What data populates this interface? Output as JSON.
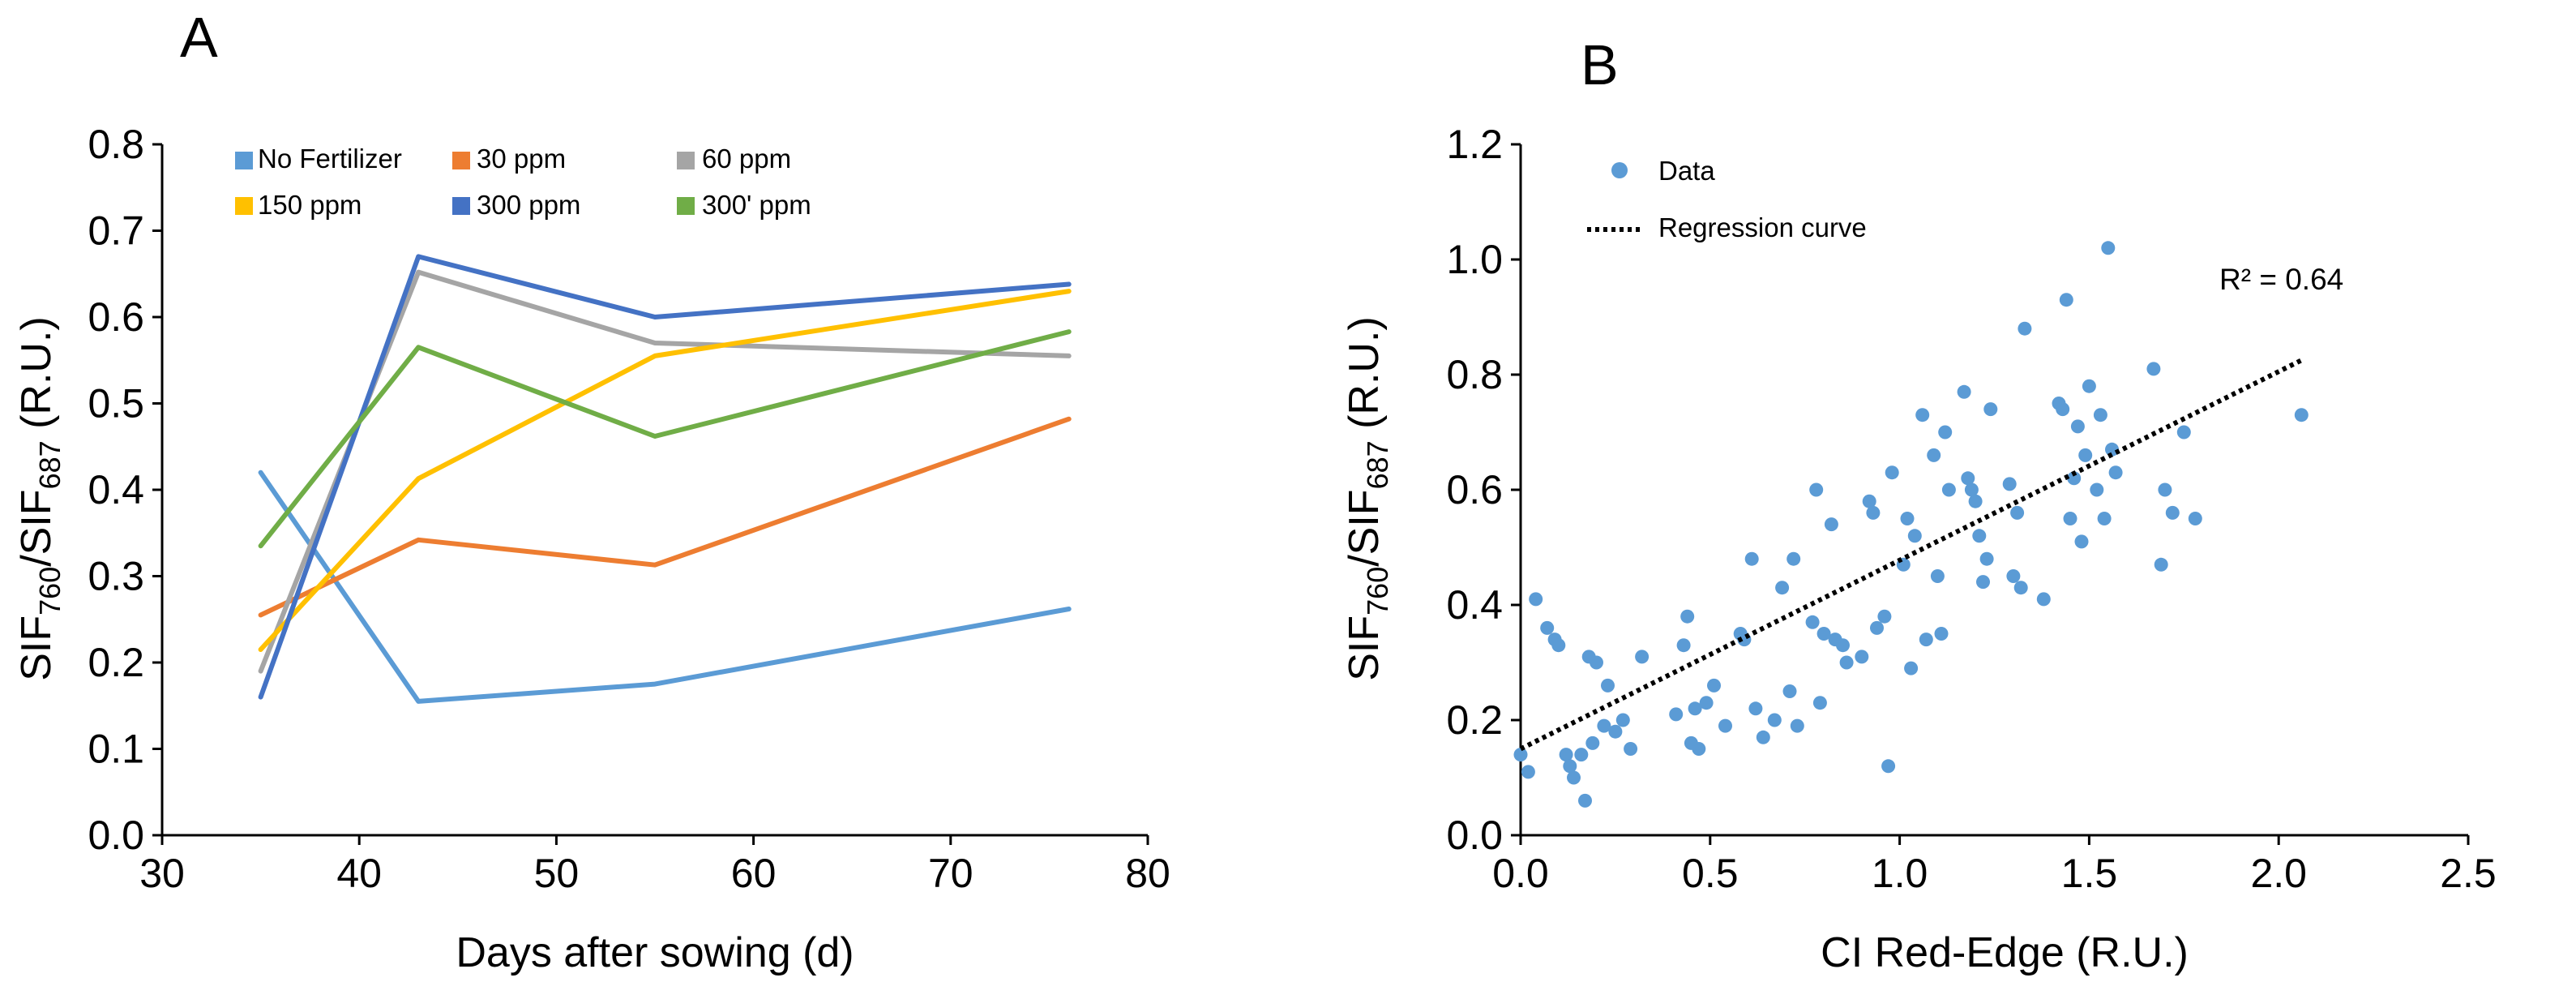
{
  "figure": {
    "panel_a_label": "A",
    "panel_b_label": "B"
  },
  "chart_data": [
    {
      "panel": "A",
      "type": "line",
      "title": "",
      "xlabel": "Days after sowing (d)",
      "ylabel": {
        "base": "SIF",
        "sub1": "760",
        "mid": "/SIF",
        "sub2": "687",
        "suffix": " (R.U.)"
      },
      "xlim": [
        30,
        80
      ],
      "ylim": [
        0.0,
        0.8
      ],
      "xticks": [
        "30",
        "40",
        "50",
        "60",
        "70",
        "80"
      ],
      "yticks": [
        "0.0",
        "0.1",
        "0.2",
        "0.3",
        "0.4",
        "0.5",
        "0.6",
        "0.7",
        "0.8"
      ],
      "grid": false,
      "legend_position": "top",
      "x": [
        35,
        43,
        55,
        76
      ],
      "series": [
        {
          "name": "No Fertilizer",
          "color": "#5b9bd5",
          "values": [
            0.42,
            0.155,
            0.175,
            0.262
          ]
        },
        {
          "name": "30 ppm",
          "color": "#ed7d31",
          "values": [
            0.255,
            0.342,
            0.313,
            0.482
          ]
        },
        {
          "name": "60 ppm",
          "color": "#a5a5a5",
          "values": [
            0.19,
            0.652,
            0.57,
            0.555
          ]
        },
        {
          "name": "150 ppm",
          "color": "#ffc000",
          "values": [
            0.215,
            0.413,
            0.555,
            0.63
          ]
        },
        {
          "name": "300 ppm",
          "color": "#4472c4",
          "values": [
            0.16,
            0.67,
            0.6,
            0.638
          ]
        },
        {
          "name": "300' ppm",
          "color": "#70ad47",
          "values": [
            0.335,
            0.565,
            0.462,
            0.583
          ]
        }
      ]
    },
    {
      "panel": "B",
      "type": "scatter",
      "title": "",
      "xlabel": "CI Red-Edge (R.U.)",
      "ylabel": {
        "base": "SIF",
        "sub1": "760",
        "mid": "/SIF",
        "sub2": "687",
        "suffix": " (R.U.)"
      },
      "xlim": [
        0.0,
        2.5
      ],
      "ylim": [
        0.0,
        1.2
      ],
      "xticks": [
        "0.0",
        "0.5",
        "1.0",
        "1.5",
        "2.0",
        "2.5"
      ],
      "yticks": [
        "0.0",
        "0.2",
        "0.4",
        "0.6",
        "0.8",
        "1.0",
        "1.2"
      ],
      "grid": false,
      "legend_position": "top-left",
      "legend": {
        "data_label": "Data",
        "regression_label": "Regression curve"
      },
      "point_color": "#5b9bd5",
      "annotation": "R² = 0.64",
      "regression": {
        "x": [
          0.0,
          2.06
        ],
        "y": [
          0.15,
          0.825
        ]
      },
      "points": [
        [
          0.0,
          0.14
        ],
        [
          0.02,
          0.11
        ],
        [
          0.04,
          0.41
        ],
        [
          0.07,
          0.36
        ],
        [
          0.09,
          0.34
        ],
        [
          0.1,
          0.33
        ],
        [
          0.12,
          0.14
        ],
        [
          0.13,
          0.12
        ],
        [
          0.14,
          0.1
        ],
        [
          0.16,
          0.14
        ],
        [
          0.17,
          0.06
        ],
        [
          0.18,
          0.31
        ],
        [
          0.19,
          0.16
        ],
        [
          0.2,
          0.3
        ],
        [
          0.22,
          0.19
        ],
        [
          0.23,
          0.26
        ],
        [
          0.25,
          0.18
        ],
        [
          0.27,
          0.2
        ],
        [
          0.29,
          0.15
        ],
        [
          0.32,
          0.31
        ],
        [
          0.41,
          0.21
        ],
        [
          0.43,
          0.33
        ],
        [
          0.44,
          0.38
        ],
        [
          0.45,
          0.16
        ],
        [
          0.46,
          0.22
        ],
        [
          0.47,
          0.15
        ],
        [
          0.49,
          0.23
        ],
        [
          0.51,
          0.26
        ],
        [
          0.54,
          0.19
        ],
        [
          0.58,
          0.35
        ],
        [
          0.59,
          0.34
        ],
        [
          0.61,
          0.48
        ],
        [
          0.62,
          0.22
        ],
        [
          0.64,
          0.17
        ],
        [
          0.67,
          0.2
        ],
        [
          0.69,
          0.43
        ],
        [
          0.71,
          0.25
        ],
        [
          0.72,
          0.48
        ],
        [
          0.73,
          0.19
        ],
        [
          0.77,
          0.37
        ],
        [
          0.78,
          0.6
        ],
        [
          0.79,
          0.23
        ],
        [
          0.8,
          0.35
        ],
        [
          0.82,
          0.54
        ],
        [
          0.83,
          0.34
        ],
        [
          0.85,
          0.33
        ],
        [
          0.86,
          0.3
        ],
        [
          0.9,
          0.31
        ],
        [
          0.92,
          0.58
        ],
        [
          0.93,
          0.56
        ],
        [
          0.94,
          0.36
        ],
        [
          0.96,
          0.38
        ],
        [
          0.97,
          0.12
        ],
        [
          0.98,
          0.63
        ],
        [
          1.01,
          0.47
        ],
        [
          1.02,
          0.55
        ],
        [
          1.03,
          0.29
        ],
        [
          1.04,
          0.52
        ],
        [
          1.06,
          0.73
        ],
        [
          1.07,
          0.34
        ],
        [
          1.09,
          0.66
        ],
        [
          1.1,
          0.45
        ],
        [
          1.11,
          0.35
        ],
        [
          1.12,
          0.7
        ],
        [
          1.13,
          0.6
        ],
        [
          1.17,
          0.77
        ],
        [
          1.18,
          0.62
        ],
        [
          1.19,
          0.6
        ],
        [
          1.2,
          0.58
        ],
        [
          1.21,
          0.52
        ],
        [
          1.22,
          0.44
        ],
        [
          1.23,
          0.48
        ],
        [
          1.24,
          0.74
        ],
        [
          1.29,
          0.61
        ],
        [
          1.3,
          0.45
        ],
        [
          1.31,
          0.56
        ],
        [
          1.32,
          0.43
        ],
        [
          1.33,
          0.88
        ],
        [
          1.38,
          0.41
        ],
        [
          1.42,
          0.75
        ],
        [
          1.43,
          0.74
        ],
        [
          1.44,
          0.93
        ],
        [
          1.45,
          0.55
        ],
        [
          1.46,
          0.62
        ],
        [
          1.47,
          0.71
        ],
        [
          1.48,
          0.51
        ],
        [
          1.49,
          0.66
        ],
        [
          1.5,
          0.78
        ],
        [
          1.52,
          0.6
        ],
        [
          1.53,
          0.73
        ],
        [
          1.54,
          0.55
        ],
        [
          1.55,
          1.02
        ],
        [
          1.56,
          0.67
        ],
        [
          1.57,
          0.63
        ],
        [
          1.67,
          0.81
        ],
        [
          1.69,
          0.47
        ],
        [
          1.7,
          0.6
        ],
        [
          1.72,
          0.56
        ],
        [
          1.75,
          0.7
        ],
        [
          1.78,
          0.55
        ],
        [
          2.06,
          0.73
        ]
      ]
    }
  ]
}
